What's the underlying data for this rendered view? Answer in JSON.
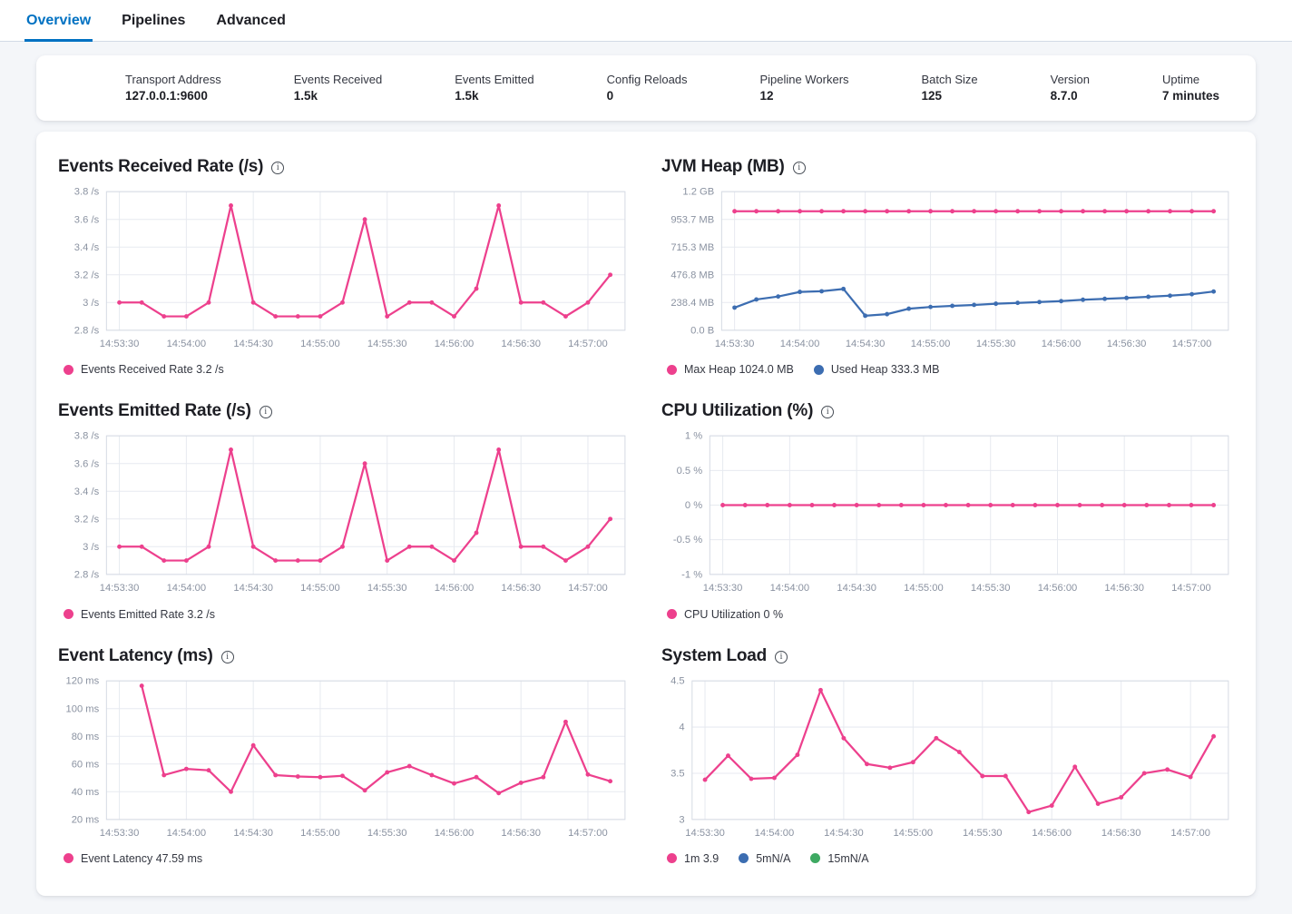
{
  "tabs": [
    {
      "label": "Overview",
      "active": true
    },
    {
      "label": "Pipelines",
      "active": false
    },
    {
      "label": "Advanced",
      "active": false
    }
  ],
  "stats": [
    {
      "label": "Transport Address",
      "value": "127.0.0.1:9600"
    },
    {
      "label": "Events Received",
      "value": "1.5k"
    },
    {
      "label": "Events Emitted",
      "value": "1.5k"
    },
    {
      "label": "Config Reloads",
      "value": "0"
    },
    {
      "label": "Pipeline Workers",
      "value": "12"
    },
    {
      "label": "Batch Size",
      "value": "125"
    },
    {
      "label": "Version",
      "value": "8.7.0"
    },
    {
      "label": "Uptime",
      "value": "7 minutes"
    }
  ],
  "icons": {
    "info": "circled-i"
  },
  "colors": {
    "pink": "#ED408D",
    "blue": "#3C6DB1",
    "green": "#3EA962",
    "active_tab": "#0071C2"
  },
  "chart_data": [
    {
      "type": "line",
      "title": "Events Received Rate (/s)",
      "x_labels": [
        "14:53:30",
        "14:54:00",
        "14:54:30",
        "14:55:00",
        "14:55:30",
        "14:56:00",
        "14:56:30",
        "14:57:00"
      ],
      "x_step_seconds": 10,
      "ylim": [
        2.8,
        3.8
      ],
      "y_ticks": [
        {
          "v": 3.8,
          "label": "3.8 /s"
        },
        {
          "v": 3.6,
          "label": "3.6 /s"
        },
        {
          "v": 3.4,
          "label": "3.4 /s"
        },
        {
          "v": 3.2,
          "label": "3.2 /s"
        },
        {
          "v": 3.0,
          "label": "3 /s"
        },
        {
          "v": 2.8,
          "label": "2.8 /s"
        }
      ],
      "series": [
        {
          "name": "Events Received Rate",
          "color": "pink",
          "offset": 0,
          "values": [
            3,
            3,
            2.9,
            2.9,
            3,
            3.7,
            3,
            2.9,
            2.9,
            2.9,
            3,
            3.6,
            2.9,
            3,
            3,
            2.9,
            3.1,
            3.7,
            3,
            3,
            2.9,
            3,
            3.2
          ]
        }
      ],
      "legend": [
        {
          "color": "pink",
          "text": "Events Received Rate 3.2 /s"
        }
      ]
    },
    {
      "type": "line",
      "title": "JVM Heap (MB)",
      "x_labels": [
        "14:53:30",
        "14:54:00",
        "14:54:30",
        "14:55:00",
        "14:55:30",
        "14:56:00",
        "14:56:30",
        "14:57:00"
      ],
      "x_step_seconds": 10,
      "ylim": [
        0,
        1192.1
      ],
      "y_ticks": [
        {
          "v": 1192.1,
          "label": "1.2 GB"
        },
        {
          "v": 953.7,
          "label": "953.7 MB"
        },
        {
          "v": 715.3,
          "label": "715.3 MB"
        },
        {
          "v": 476.8,
          "label": "476.8 MB"
        },
        {
          "v": 238.4,
          "label": "238.4 MB"
        },
        {
          "v": 0,
          "label": "0.0 B"
        }
      ],
      "series": [
        {
          "name": "Max Heap",
          "color": "pink",
          "offset": 0,
          "values": [
            1024,
            1024,
            1024,
            1024,
            1024,
            1024,
            1024,
            1024,
            1024,
            1024,
            1024,
            1024,
            1024,
            1024,
            1024,
            1024,
            1024,
            1024,
            1024,
            1024,
            1024,
            1024,
            1024
          ]
        },
        {
          "name": "Used Heap",
          "color": "blue",
          "offset": 0,
          "values": [
            195,
            265,
            290,
            330,
            335,
            355,
            125,
            138,
            185,
            200,
            210,
            218,
            228,
            235,
            242,
            250,
            262,
            270,
            278,
            288,
            297,
            310,
            333
          ]
        }
      ],
      "legend": [
        {
          "color": "pink",
          "text": "Max Heap 1024.0 MB"
        },
        {
          "color": "blue",
          "text": "Used Heap 333.3 MB"
        }
      ]
    },
    {
      "type": "line",
      "title": "Events Emitted Rate (/s)",
      "x_labels": [
        "14:53:30",
        "14:54:00",
        "14:54:30",
        "14:55:00",
        "14:55:30",
        "14:56:00",
        "14:56:30",
        "14:57:00"
      ],
      "x_step_seconds": 10,
      "ylim": [
        2.8,
        3.8
      ],
      "y_ticks": [
        {
          "v": 3.8,
          "label": "3.8 /s"
        },
        {
          "v": 3.6,
          "label": "3.6 /s"
        },
        {
          "v": 3.4,
          "label": "3.4 /s"
        },
        {
          "v": 3.2,
          "label": "3.2 /s"
        },
        {
          "v": 3.0,
          "label": "3 /s"
        },
        {
          "v": 2.8,
          "label": "2.8 /s"
        }
      ],
      "series": [
        {
          "name": "Events Emitted Rate",
          "color": "pink",
          "offset": 0,
          "values": [
            3,
            3,
            2.9,
            2.9,
            3,
            3.7,
            3,
            2.9,
            2.9,
            2.9,
            3,
            3.6,
            2.9,
            3,
            3,
            2.9,
            3.1,
            3.7,
            3,
            3,
            2.9,
            3,
            3.2
          ]
        }
      ],
      "legend": [
        {
          "color": "pink",
          "text": "Events Emitted Rate 3.2 /s"
        }
      ]
    },
    {
      "type": "line",
      "title": "CPU Utilization (%)",
      "x_labels": [
        "14:53:30",
        "14:54:00",
        "14:54:30",
        "14:55:00",
        "14:55:30",
        "14:56:00",
        "14:56:30",
        "14:57:00"
      ],
      "x_step_seconds": 10,
      "ylim": [
        -1,
        1
      ],
      "y_ticks": [
        {
          "v": 1,
          "label": "1 %"
        },
        {
          "v": 0.5,
          "label": "0.5 %"
        },
        {
          "v": 0,
          "label": "0 %"
        },
        {
          "v": -0.5,
          "label": "-0.5 %"
        },
        {
          "v": -1,
          "label": "-1 %"
        }
      ],
      "series": [
        {
          "name": "CPU Utilization",
          "color": "pink",
          "offset": 0,
          "values": [
            0,
            0,
            0,
            0,
            0,
            0,
            0,
            0,
            0,
            0,
            0,
            0,
            0,
            0,
            0,
            0,
            0,
            0,
            0,
            0,
            0,
            0,
            0
          ]
        }
      ],
      "legend": [
        {
          "color": "pink",
          "text": "CPU Utilization 0 %"
        }
      ]
    },
    {
      "type": "line",
      "title": "Event Latency (ms)",
      "x_labels": [
        "14:53:30",
        "14:54:00",
        "14:54:30",
        "14:55:00",
        "14:55:30",
        "14:56:00",
        "14:56:30",
        "14:57:00"
      ],
      "x_step_seconds": 10,
      "ylim": [
        20,
        120
      ],
      "y_ticks": [
        {
          "v": 120,
          "label": "120 ms"
        },
        {
          "v": 100,
          "label": "100 ms"
        },
        {
          "v": 80,
          "label": "80 ms"
        },
        {
          "v": 60,
          "label": "60 ms"
        },
        {
          "v": 40,
          "label": "40 ms"
        },
        {
          "v": 20,
          "label": "20 ms"
        }
      ],
      "series": [
        {
          "name": "Event Latency",
          "color": "pink",
          "offset": 1,
          "values": [
            116.5,
            52,
            56.5,
            55.5,
            40,
            73.5,
            52,
            51,
            50.5,
            51.5,
            41,
            54,
            58.5,
            52,
            46,
            50.5,
            39,
            46.5,
            50.5,
            90.5,
            52.5,
            47.59
          ]
        }
      ],
      "legend": [
        {
          "color": "pink",
          "text": "Event Latency 47.59 ms"
        }
      ]
    },
    {
      "type": "line",
      "title": "System Load",
      "x_labels": [
        "14:53:30",
        "14:54:00",
        "14:54:30",
        "14:55:00",
        "14:55:30",
        "14:56:00",
        "14:56:30",
        "14:57:00"
      ],
      "x_step_seconds": 10,
      "ylim": [
        3,
        4.5
      ],
      "y_ticks": [
        {
          "v": 4.5,
          "label": "4.5"
        },
        {
          "v": 4,
          "label": "4"
        },
        {
          "v": 3.5,
          "label": "3.5"
        },
        {
          "v": 3,
          "label": "3"
        }
      ],
      "series": [
        {
          "name": "1m",
          "color": "pink",
          "offset": 0,
          "values": [
            3.43,
            3.69,
            3.44,
            3.45,
            3.7,
            4.4,
            3.88,
            3.6,
            3.56,
            3.62,
            3.88,
            3.73,
            3.47,
            3.47,
            3.08,
            3.15,
            3.57,
            3.17,
            3.24,
            3.5,
            3.54,
            3.46,
            3.9
          ]
        }
      ],
      "legend": [
        {
          "color": "pink",
          "text": "1m 3.9"
        },
        {
          "color": "blue",
          "text": "5mN/A"
        },
        {
          "color": "green",
          "text": "15mN/A"
        }
      ]
    }
  ]
}
